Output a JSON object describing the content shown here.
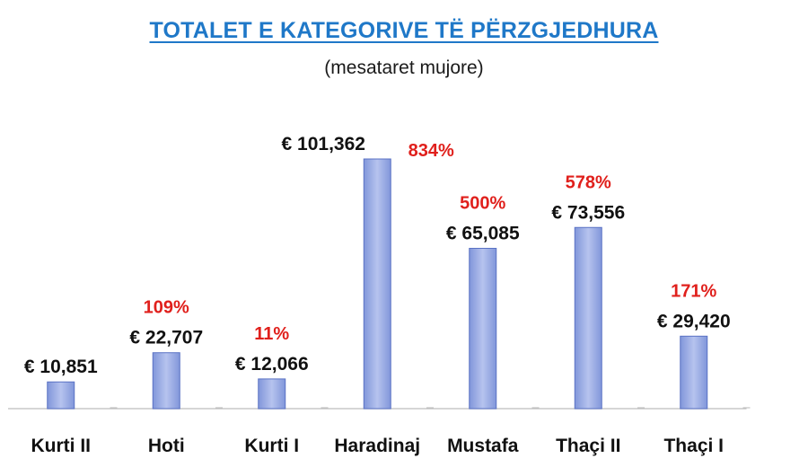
{
  "chart_data": {
    "type": "bar",
    "title": "TOTALET E KATEGORIVE TË PËRZGJEDHURA",
    "subtitle": "(mesataret mujore)",
    "categories": [
      "Kurti II",
      "Hoti",
      "Kurti I",
      "Haradinaj",
      "Mustafa",
      "Thaçi II",
      "Thaçi I"
    ],
    "values": [
      10851,
      22707,
      12066,
      101362,
      65085,
      73556,
      29420
    ],
    "value_labels": [
      "€ 10,851",
      "€ 22,707",
      "€ 12,066",
      "€ 101,362",
      "€ 65,085",
      "€ 73,556",
      "€ 29,420"
    ],
    "percent_labels": [
      "",
      "109%",
      "11%",
      "834%",
      "500%",
      "578%",
      "171%"
    ],
    "ylim": [
      0,
      101362
    ],
    "grid": false,
    "legend": "none",
    "colors": {
      "bar": "#a9b8e8",
      "bar_dark": "#8196da",
      "percent": "#e0201c",
      "title": "#1f78c8"
    }
  }
}
